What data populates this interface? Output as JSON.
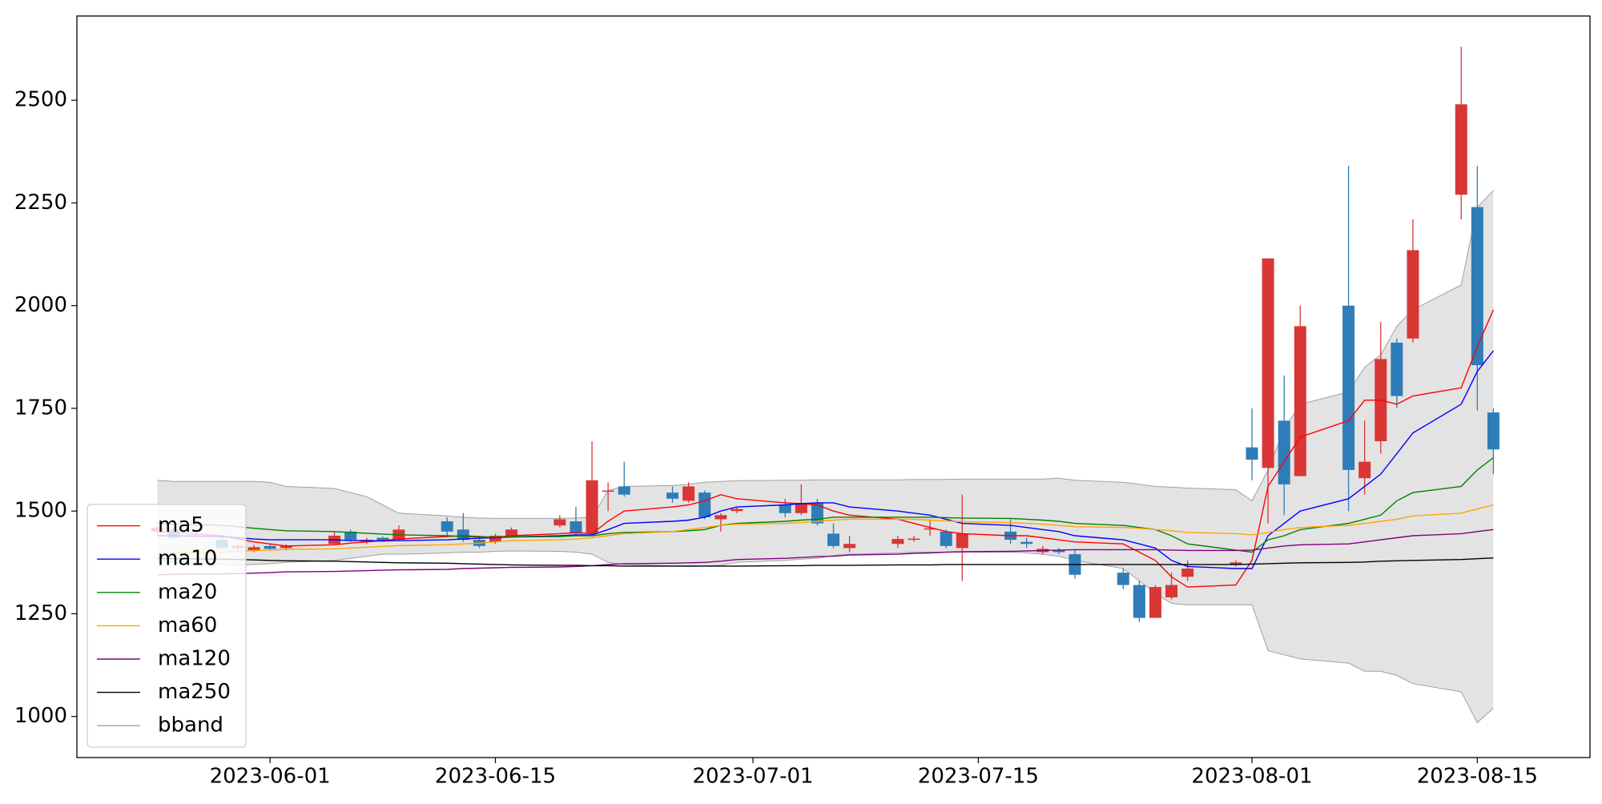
{
  "chart_data": {
    "type": "candlestick",
    "x": [
      "2023-05-25",
      "2023-05-26",
      "2023-05-29",
      "2023-05-30",
      "2023-05-31",
      "2023-06-01",
      "2023-06-02",
      "2023-06-05",
      "2023-06-06",
      "2023-06-07",
      "2023-06-08",
      "2023-06-09",
      "2023-06-12",
      "2023-06-13",
      "2023-06-14",
      "2023-06-15",
      "2023-06-16",
      "2023-06-19",
      "2023-06-20",
      "2023-06-21",
      "2023-06-22",
      "2023-06-23",
      "2023-06-26",
      "2023-06-27",
      "2023-06-28",
      "2023-06-29",
      "2023-06-30",
      "2023-07-03",
      "2023-07-04",
      "2023-07-05",
      "2023-07-06",
      "2023-07-07",
      "2023-07-10",
      "2023-07-11",
      "2023-07-12",
      "2023-07-13",
      "2023-07-14",
      "2023-07-17",
      "2023-07-18",
      "2023-07-19",
      "2023-07-20",
      "2023-07-21",
      "2023-07-24",
      "2023-07-25",
      "2023-07-26",
      "2023-07-27",
      "2023-07-28",
      "2023-07-31",
      "2023-08-01",
      "2023-08-02",
      "2023-08-03",
      "2023-08-04",
      "2023-08-07",
      "2023-08-08",
      "2023-08-09",
      "2023-08-10",
      "2023-08-11",
      "2023-08-14",
      "2023-08-15",
      "2023-08-16"
    ],
    "open": [
      1450,
      1455,
      1430,
      1410,
      1405,
      1415,
      1410,
      1420,
      1450,
      1425,
      1435,
      1430,
      1475,
      1455,
      1430,
      1425,
      1440,
      1465,
      1475,
      1445,
      1550,
      1560,
      1545,
      1525,
      1545,
      1480,
      1500,
      1515,
      1495,
      1520,
      1445,
      1410,
      1420,
      1430,
      1455,
      1450,
      1410,
      1450,
      1425,
      1400,
      1405,
      1395,
      1350,
      1320,
      1240,
      1290,
      1340,
      1370,
      1655,
      1605,
      1720,
      1585,
      2000,
      1580,
      1670,
      1910,
      1920,
      2270,
      2240,
      1740
    ],
    "high": [
      1465,
      1460,
      1440,
      1420,
      1418,
      1420,
      1420,
      1450,
      1455,
      1435,
      1438,
      1465,
      1485,
      1495,
      1440,
      1445,
      1460,
      1490,
      1510,
      1670,
      1570,
      1620,
      1560,
      1570,
      1550,
      1495,
      1510,
      1530,
      1565,
      1530,
      1470,
      1440,
      1440,
      1440,
      1480,
      1455,
      1540,
      1480,
      1435,
      1415,
      1410,
      1405,
      1360,
      1330,
      1320,
      1350,
      1380,
      1380,
      1750,
      2115,
      1830,
      2000,
      2340,
      1720,
      1960,
      1920,
      2210,
      2630,
      2340,
      1750
    ],
    "low": [
      1445,
      1430,
      1405,
      1405,
      1400,
      1405,
      1405,
      1420,
      1425,
      1420,
      1425,
      1428,
      1440,
      1425,
      1410,
      1420,
      1438,
      1460,
      1440,
      1440,
      1500,
      1535,
      1520,
      1520,
      1480,
      1450,
      1495,
      1485,
      1490,
      1465,
      1410,
      1400,
      1410,
      1425,
      1440,
      1410,
      1330,
      1420,
      1410,
      1395,
      1395,
      1335,
      1310,
      1230,
      1240,
      1285,
      1330,
      1365,
      1575,
      1470,
      1490,
      1585,
      1500,
      1540,
      1640,
      1750,
      1910,
      2210,
      1745,
      1590
    ],
    "close": [
      1460,
      1435,
      1410,
      1415,
      1412,
      1408,
      1415,
      1440,
      1430,
      1430,
      1428,
      1455,
      1450,
      1430,
      1415,
      1440,
      1455,
      1480,
      1445,
      1575,
      1550,
      1540,
      1530,
      1560,
      1485,
      1490,
      1505,
      1495,
      1520,
      1470,
      1415,
      1420,
      1432,
      1433,
      1458,
      1415,
      1445,
      1430,
      1420,
      1408,
      1400,
      1345,
      1320,
      1240,
      1315,
      1320,
      1360,
      1375,
      1625,
      2115,
      1565,
      1950,
      1600,
      1620,
      1870,
      1780,
      2135,
      2490,
      1855,
      1650
    ],
    "up_color": "#d93636",
    "down_color": "#2e7db8",
    "lines": [
      {
        "name": "ma5",
        "color": "#ff0000",
        "values": [
          1450,
          1448,
          1440,
          1432,
          1425,
          1420,
          1415,
          1418,
          1422,
          1425,
          1428,
          1432,
          1438,
          1440,
          1438,
          1436,
          1440,
          1445,
          1448,
          1445,
          1475,
          1500,
          1510,
          1515,
          1525,
          1540,
          1530,
          1520,
          1518,
          1515,
          1500,
          1490,
          1480,
          1470,
          1460,
          1450,
          1445,
          1440,
          1440,
          1435,
          1430,
          1425,
          1420,
          1400,
          1380,
          1340,
          1315,
          1320,
          1380,
          1560,
          1620,
          1680,
          1720,
          1770,
          1770,
          1760,
          1780,
          1800,
          1900,
          1990
        ]
      },
      {
        "name": "ma10",
        "color": "#0000ff",
        "values": [
          1440,
          1440,
          1438,
          1435,
          1432,
          1430,
          1430,
          1430,
          1428,
          1428,
          1427,
          1428,
          1430,
          1432,
          1434,
          1435,
          1437,
          1440,
          1442,
          1442,
          1455,
          1470,
          1475,
          1478,
          1485,
          1500,
          1510,
          1515,
          1518,
          1520,
          1520,
          1510,
          1500,
          1495,
          1490,
          1480,
          1470,
          1465,
          1460,
          1455,
          1450,
          1440,
          1430,
          1420,
          1410,
          1380,
          1365,
          1360,
          1360,
          1440,
          1470,
          1500,
          1530,
          1560,
          1590,
          1640,
          1690,
          1760,
          1840,
          1890
        ]
      },
      {
        "name": "ma20",
        "color": "#008000",
        "values": [
          1470,
          1468,
          1465,
          1462,
          1458,
          1455,
          1452,
          1450,
          1448,
          1446,
          1444,
          1442,
          1440,
          1438,
          1437,
          1436,
          1437,
          1438,
          1440,
          1440,
          1445,
          1448,
          1450,
          1452,
          1455,
          1465,
          1470,
          1475,
          1478,
          1480,
          1485,
          1485,
          1485,
          1485,
          1485,
          1484,
          1483,
          1482,
          1480,
          1478,
          1475,
          1470,
          1465,
          1460,
          1455,
          1440,
          1420,
          1405,
          1400,
          1430,
          1440,
          1455,
          1470,
          1480,
          1490,
          1525,
          1545,
          1560,
          1600,
          1630
        ]
      },
      {
        "name": "ma60",
        "color": "#ffa500",
        "values": [
          1395,
          1398,
          1400,
          1402,
          1404,
          1405,
          1407,
          1408,
          1410,
          1412,
          1414,
          1416,
          1418,
          1420,
          1422,
          1425,
          1428,
          1430,
          1432,
          1435,
          1440,
          1445,
          1450,
          1455,
          1460,
          1465,
          1468,
          1470,
          1472,
          1475,
          1478,
          1480,
          1480,
          1480,
          1478,
          1476,
          1474,
          1472,
          1470,
          1468,
          1465,
          1462,
          1460,
          1458,
          1455,
          1452,
          1448,
          1445,
          1442,
          1448,
          1455,
          1460,
          1465,
          1470,
          1475,
          1480,
          1488,
          1495,
          1505,
          1515
        ]
      },
      {
        "name": "ma120",
        "color": "#800080",
        "values": [
          1345,
          1346,
          1347,
          1348,
          1349,
          1350,
          1352,
          1353,
          1354,
          1355,
          1356,
          1357,
          1358,
          1360,
          1361,
          1362,
          1363,
          1364,
          1365,
          1367,
          1370,
          1372,
          1373,
          1374,
          1375,
          1378,
          1382,
          1385,
          1387,
          1389,
          1390,
          1393,
          1395,
          1397,
          1398,
          1400,
          1401,
          1402,
          1403,
          1404,
          1405,
          1406,
          1406,
          1406,
          1406,
          1405,
          1404,
          1404,
          1405,
          1410,
          1415,
          1418,
          1420,
          1425,
          1430,
          1435,
          1440,
          1445,
          1450,
          1455
        ]
      },
      {
        "name": "ma250",
        "color": "#000000",
        "values": [
          1385,
          1384,
          1383,
          1382,
          1381,
          1380,
          1379,
          1378,
          1377,
          1376,
          1375,
          1374,
          1373,
          1372,
          1371,
          1370,
          1369,
          1368,
          1368,
          1367,
          1367,
          1366,
          1366,
          1366,
          1366,
          1366,
          1366,
          1367,
          1367,
          1368,
          1368,
          1368,
          1369,
          1369,
          1369,
          1370,
          1370,
          1370,
          1370,
          1370,
          1370,
          1370,
          1370,
          1370,
          1370,
          1370,
          1370,
          1370,
          1371,
          1372,
          1373,
          1374,
          1375,
          1376,
          1378,
          1379,
          1380,
          1382,
          1384,
          1386
        ]
      }
    ],
    "band": {
      "name": "bband",
      "color": "#a0a0a0",
      "fill": "#e3e3e3",
      "upper": [
        1575,
        1572,
        1572,
        1572,
        1572,
        1570,
        1560,
        1555,
        1545,
        1535,
        1515,
        1495,
        1488,
        1485,
        1483,
        1482,
        1482,
        1482,
        1483,
        1485,
        1550,
        1560,
        1562,
        1565,
        1570,
        1572,
        1574,
        1575,
        1575,
        1576,
        1576,
        1576,
        1576,
        1577,
        1577,
        1577,
        1578,
        1578,
        1578,
        1578,
        1580,
        1575,
        1570,
        1565,
        1560,
        1558,
        1556,
        1552,
        1525,
        1600,
        1700,
        1760,
        1790,
        1850,
        1880,
        1950,
        1990,
        2050,
        2240,
        2280
      ],
      "lower": [
        1380,
        1375,
        1370,
        1368,
        1370,
        1372,
        1375,
        1380,
        1385,
        1390,
        1395,
        1395,
        1398,
        1400,
        1400,
        1402,
        1403,
        1402,
        1400,
        1395,
        1375,
        1370,
        1366,
        1365,
        1366,
        1368,
        1375,
        1380,
        1383,
        1385,
        1392,
        1395,
        1398,
        1400,
        1400,
        1400,
        1400,
        1400,
        1398,
        1395,
        1390,
        1380,
        1360,
        1330,
        1300,
        1275,
        1272,
        1272,
        1272,
        1160,
        1150,
        1140,
        1130,
        1110,
        1110,
        1100,
        1080,
        1060,
        985,
        1020
      ]
    },
    "xlim": [
      "2023-05-20",
      "2023-08-22"
    ],
    "xticks": [
      "2023-06-01",
      "2023-06-15",
      "2023-07-01",
      "2023-07-15",
      "2023-08-01",
      "2023-08-15"
    ],
    "ylim": [
      900,
      2705
    ],
    "yticks": [
      1000,
      1250,
      1500,
      1750,
      2000,
      2250,
      2500
    ],
    "legend": "lower left"
  }
}
